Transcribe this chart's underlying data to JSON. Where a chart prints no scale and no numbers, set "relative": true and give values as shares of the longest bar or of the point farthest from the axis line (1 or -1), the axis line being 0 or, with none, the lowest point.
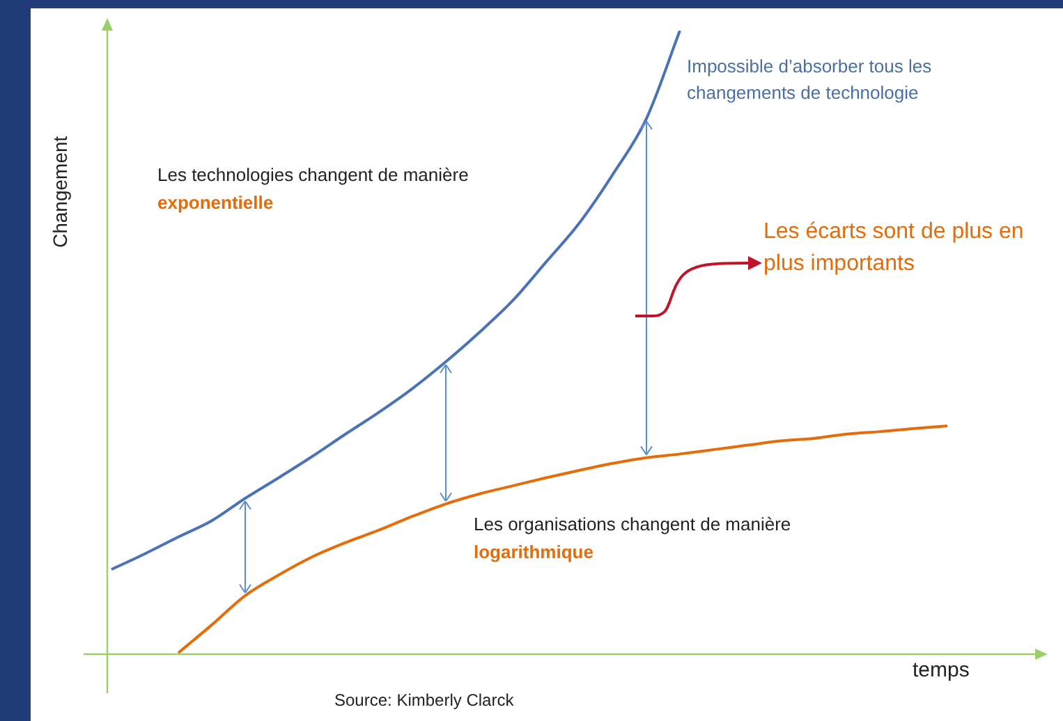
{
  "chart_data": {
    "type": "line",
    "relative": true,
    "xlabel": "temps",
    "ylabel": "Changement",
    "legend": false,
    "grid": false,
    "marker": "none",
    "line_style": "solid",
    "categories": [
      null,
      null,
      null,
      null,
      null,
      null,
      null,
      null,
      null,
      null,
      null,
      null,
      null,
      null,
      null,
      null,
      null,
      null,
      null,
      null,
      null,
      null,
      null,
      null,
      null,
      null
    ],
    "series": [
      {
        "color": "#4a72b8",
        "values": [
          0.136,
          0.161,
          0.188,
          0.214,
          0.25,
          0.283,
          0.317,
          0.353,
          0.388,
          0.426,
          0.469,
          0.516,
          0.567,
          0.629,
          0.692,
          0.77,
          0.859,
          1,
          null,
          null,
          null,
          null,
          null,
          null,
          null,
          null
        ]
      },
      {
        "color": "#e46c0a",
        "values": [
          null,
          null,
          0.002,
          0.047,
          0.094,
          0.127,
          0.156,
          0.179,
          0.199,
          0.221,
          0.241,
          0.257,
          0.27,
          0.283,
          0.295,
          0.306,
          0.315,
          0.321,
          0.328,
          0.335,
          0.342,
          0.346,
          0.353,
          0.357,
          0.362,
          0.366
        ]
      }
    ],
    "annotations": [
      "Impossible d’absorber tous les changements de technologie",
      "Les technologies changent de manière",
      "exponentielle",
      "Les écarts sont de plus en plus importants",
      "Les organisations changent de manière",
      "logarithmique",
      "Source: Kimberly Clarck"
    ]
  }
}
